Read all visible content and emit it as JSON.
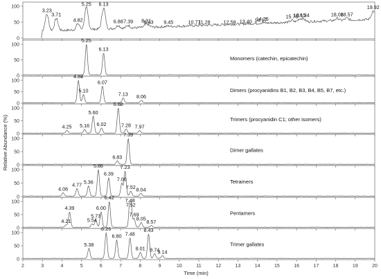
{
  "chart_data": {
    "type": "line",
    "title": "",
    "xlabel": "Time (min)",
    "ylabel": "Relative Abundance (%)",
    "xlim": [
      2,
      20
    ],
    "ylim": [
      0,
      100
    ],
    "x_ticks": [
      2,
      3,
      4,
      5,
      6,
      7,
      8,
      9,
      10,
      11,
      12,
      13,
      14,
      15,
      16,
      17,
      18,
      19,
      20
    ],
    "y_ticks": [
      0,
      50,
      100
    ],
    "grid": false,
    "series": [
      {
        "name": "",
        "peaks": [
          {
            "x": 3.23,
            "y": 75,
            "label": "3.23"
          },
          {
            "x": 3.71,
            "y": 62,
            "label": "3.71"
          },
          {
            "x": 4.82,
            "y": 45,
            "label": "4.82"
          },
          {
            "x": 5.25,
            "y": 95,
            "label": "5.25"
          },
          {
            "x": 6.13,
            "y": 95,
            "label": "6.13"
          },
          {
            "x": 6.88,
            "y": 40,
            "label": "6.88"
          },
          {
            "x": 7.39,
            "y": 40,
            "label": "7.39"
          },
          {
            "x": 8.31,
            "y": 42,
            "label": "8.31"
          },
          {
            "x": 8.43,
            "y": 38,
            "label": "8.43"
          },
          {
            "x": 9.45,
            "y": 38,
            "label": "9.45"
          },
          {
            "x": 10.77,
            "y": 38,
            "label": "10.77"
          },
          {
            "x": 11.28,
            "y": 38,
            "label": "11.28"
          },
          {
            "x": 12.58,
            "y": 38,
            "label": "12.58"
          },
          {
            "x": 13.4,
            "y": 40,
            "label": "13.40"
          },
          {
            "x": 14.17,
            "y": 45,
            "label": "14.17"
          },
          {
            "x": 14.25,
            "y": 48,
            "label": "14.25"
          },
          {
            "x": 15.76,
            "y": 55,
            "label": "15.76"
          },
          {
            "x": 16.15,
            "y": 60,
            "label": "16.15"
          },
          {
            "x": 16.34,
            "y": 60,
            "label": "16.34"
          },
          {
            "x": 18.08,
            "y": 62,
            "label": "18.08"
          },
          {
            "x": 18.57,
            "y": 62,
            "label": "18.57"
          },
          {
            "x": 19.92,
            "y": 85,
            "label": "19.92"
          }
        ]
      },
      {
        "name": "Monomers (catechin, epicatechin)",
        "peaks": [
          {
            "x": 5.25,
            "y": 100,
            "label": "5.25"
          },
          {
            "x": 6.13,
            "y": 72,
            "label": "6.13"
          }
        ]
      },
      {
        "name": "Dimers (procyanidins B1, B2, B3, B4, B5, B7, etc.)",
        "peaks": [
          {
            "x": 4.84,
            "y": 100,
            "label": "4.84"
          },
          {
            "x": 5.1,
            "y": 38,
            "label": "5.10"
          },
          {
            "x": 6.07,
            "y": 75,
            "label": "6.07"
          },
          {
            "x": 7.13,
            "y": 22,
            "label": "7.13"
          },
          {
            "x": 8.06,
            "y": 12,
            "label": "8.06"
          }
        ]
      },
      {
        "name": "Trimers (procyanidin C1; other isomers)",
        "peaks": [
          {
            "x": 4.25,
            "y": 12,
            "label": "4.25"
          },
          {
            "x": 5.16,
            "y": 16,
            "label": "5.16"
          },
          {
            "x": 5.6,
            "y": 68,
            "label": "5.60"
          },
          {
            "x": 6.02,
            "y": 22,
            "label": "6.02"
          },
          {
            "x": 6.88,
            "y": 100,
            "label": "6.88"
          },
          {
            "x": 7.28,
            "y": 18,
            "label": "7.28"
          },
          {
            "x": 7.97,
            "y": 12,
            "label": "7.97"
          }
        ]
      },
      {
        "name": "Dimer gallates",
        "peaks": [
          {
            "x": 6.83,
            "y": 14,
            "label": "6.83"
          },
          {
            "x": 7.39,
            "y": 100,
            "label": "7.39"
          }
        ]
      },
      {
        "name": "Tetramers",
        "peaks": [
          {
            "x": 4.06,
            "y": 14,
            "label": "4.06"
          },
          {
            "x": 4.77,
            "y": 30,
            "label": "4.77"
          },
          {
            "x": 5.36,
            "y": 40,
            "label": "5.36"
          },
          {
            "x": 5.86,
            "y": 100,
            "label": "5.86"
          },
          {
            "x": 6.39,
            "y": 70,
            "label": "6.39"
          },
          {
            "x": 7.06,
            "y": 50,
            "label": "7.06"
          },
          {
            "x": 7.23,
            "y": 95,
            "label": "7.23"
          },
          {
            "x": 7.52,
            "y": 20,
            "label": "7.52"
          },
          {
            "x": 8.04,
            "y": 12,
            "label": "8.04"
          }
        ]
      },
      {
        "name": "Pentamers",
        "peaks": [
          {
            "x": 4.21,
            "y": 10,
            "label": "4.21"
          },
          {
            "x": 4.39,
            "y": 60,
            "label": "4.39"
          },
          {
            "x": 5.54,
            "y": 14,
            "label": "5.54"
          },
          {
            "x": 5.73,
            "y": 30,
            "label": "5.73"
          },
          {
            "x": 6.0,
            "y": 60,
            "label": "6.00"
          },
          {
            "x": 6.42,
            "y": 100,
            "label": "6.42"
          },
          {
            "x": 7.48,
            "y": 90,
            "label": "7.48"
          },
          {
            "x": 7.52,
            "y": 72,
            "label": "7.52"
          },
          {
            "x": 7.69,
            "y": 35,
            "label": "7.69"
          },
          {
            "x": 8.05,
            "y": 20,
            "label": "8.05"
          },
          {
            "x": 8.57,
            "y": 8,
            "label": "8.57"
          }
        ]
      },
      {
        "name": "Trimer gallates",
        "peaks": [
          {
            "x": 5.38,
            "y": 40,
            "label": "5.38"
          },
          {
            "x": 6.26,
            "y": 100,
            "label": "6.26"
          },
          {
            "x": 6.8,
            "y": 72,
            "label": "6.80"
          },
          {
            "x": 7.48,
            "y": 80,
            "label": "7.48"
          },
          {
            "x": 8.01,
            "y": 25,
            "label": "8.01"
          },
          {
            "x": 8.43,
            "y": 95,
            "label": "8.43"
          },
          {
            "x": 8.74,
            "y": 20,
            "label": "8.74"
          },
          {
            "x": 9.14,
            "y": 12,
            "label": "9.14"
          }
        ]
      }
    ]
  }
}
